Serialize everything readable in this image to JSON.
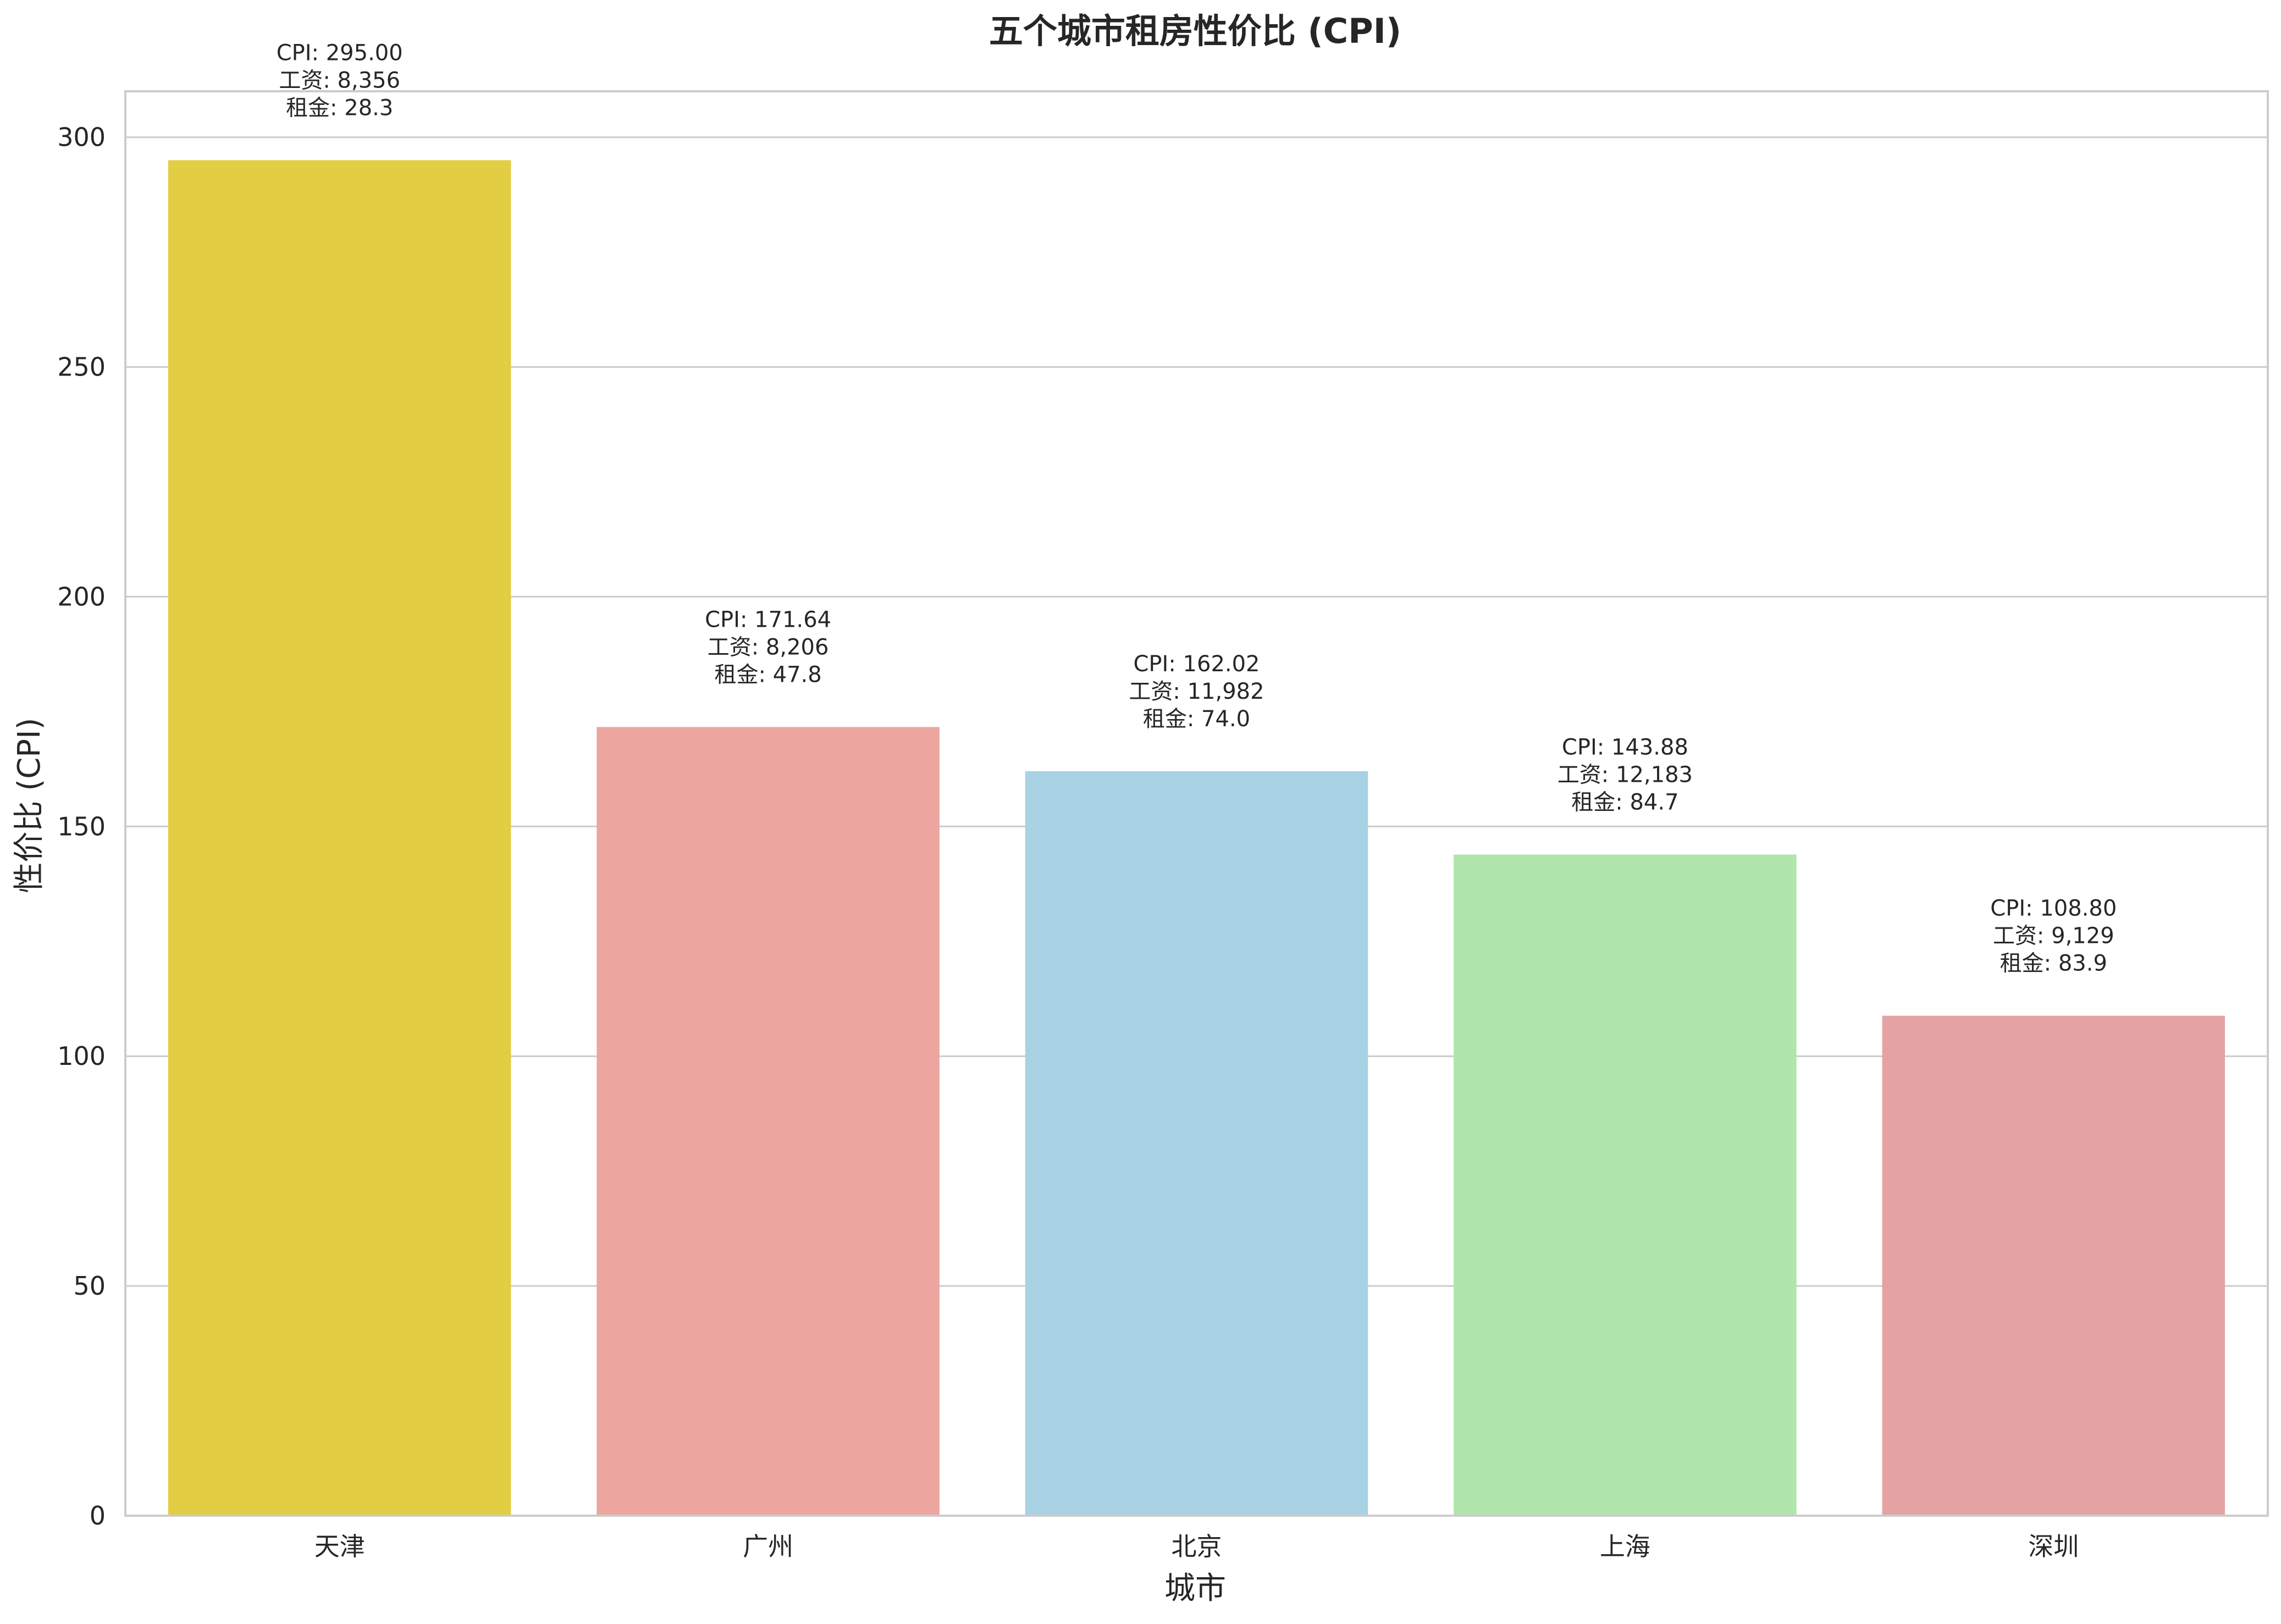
{
  "chart_data": {
    "type": "bar",
    "title": "五个城市租房性价比 (CPI)",
    "xlabel": "城市",
    "ylabel": "性价比 (CPI)",
    "ylim": [
      0,
      310
    ],
    "yticks": [
      0,
      50,
      100,
      150,
      200,
      250,
      300
    ],
    "grid": true,
    "categories": [
      "天津",
      "广州",
      "北京",
      "上海",
      "深圳"
    ],
    "values": [
      295.0,
      171.64,
      162.02,
      143.88,
      108.8
    ],
    "colors": [
      "#e3cd43",
      "#eca59f",
      "#a8d2e3",
      "#b0e5ab",
      "#e4a2a3"
    ],
    "annotations": [
      [
        "CPI: 295.00",
        "工资: 8,356",
        "租金: 28.3"
      ],
      [
        "CPI: 171.64",
        "工资: 8,206",
        "租金: 47.8"
      ],
      [
        "CPI: 162.02",
        "工资: 11,982",
        "租金: 74.0"
      ],
      [
        "CPI: 143.88",
        "工资: 12,183",
        "租金: 84.7"
      ],
      [
        "CPI: 108.80",
        "工资: 9,129",
        "租金: 83.9"
      ]
    ]
  }
}
